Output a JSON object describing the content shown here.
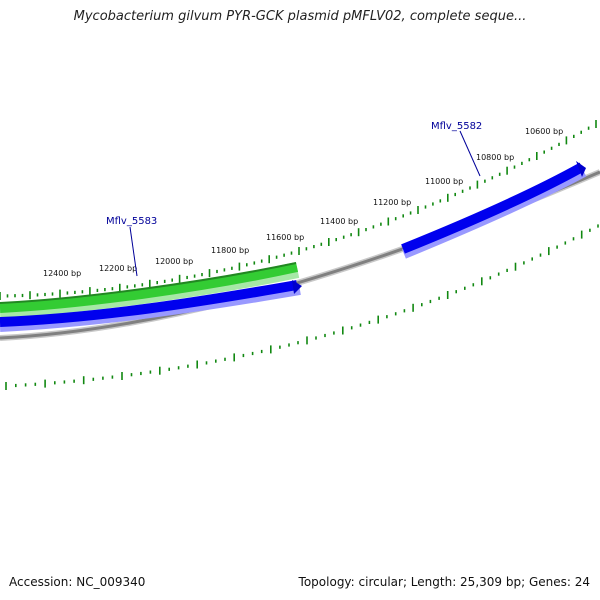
{
  "title": "Mycobacterium gilvum PYR-GCK plasmid pMFLV02, complete seque...",
  "footer": {
    "accession": "Accession: NC_009340",
    "summary": "Topology: circular; Length: 25,309 bp; Genes: 24"
  },
  "colors": {
    "backbone": "#808080",
    "forward_gene": "#33cc33",
    "reverse_gene": "#0000ee",
    "ticks": "#118811",
    "gene_label": "#000099"
  },
  "scale_labels": [
    {
      "bp": 10600,
      "text": "10600 bp"
    },
    {
      "bp": 10800,
      "text": "10800 bp"
    },
    {
      "bp": 11000,
      "text": "11000 bp"
    },
    {
      "bp": 11200,
      "text": "11200 bp"
    },
    {
      "bp": 11400,
      "text": "11400 bp"
    },
    {
      "bp": 11600,
      "text": "11600 bp"
    },
    {
      "bp": 11800,
      "text": "11800 bp"
    },
    {
      "bp": 12000,
      "text": "12000 bp"
    },
    {
      "bp": 12200,
      "text": "12200 bp"
    },
    {
      "bp": 12400,
      "text": "12400 bp"
    }
  ],
  "genes": [
    {
      "name": "Mflv_5582",
      "strand": "reverse"
    },
    {
      "name": "Mflv_5583",
      "strand": "forward"
    }
  ]
}
